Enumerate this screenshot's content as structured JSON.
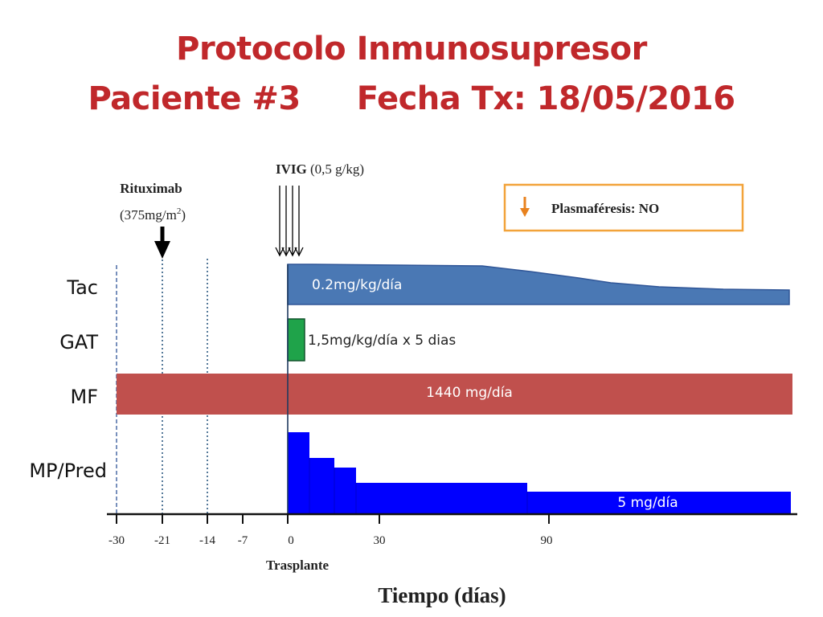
{
  "title": {
    "line1": "Protocolo Inmunosupresor",
    "patient": "Paciente #3",
    "date": "Fecha Tx: 18/05/2016"
  },
  "rows": {
    "tac": "Tac",
    "gat": "GAT",
    "mf": "MF",
    "mp": "MP/Pred"
  },
  "bars": {
    "tac": {
      "label": "0.2mg/kg/día",
      "color": "#4a78b4",
      "start_day": 0
    },
    "gat": {
      "label": "1,5mg/kg/día  x 5 dias",
      "color": "#1fa34a",
      "start_day": 0,
      "duration_days": 5
    },
    "mf": {
      "label": "1440 mg/día",
      "color": "#c0504d"
    },
    "mp": {
      "label": "5 mg/día",
      "color": "#0000ff",
      "start_day": 0
    }
  },
  "annotations": {
    "rituximab_name": "Rituximab",
    "rituximab_dose_prefix": "(375mg/m",
    "rituximab_sup": "2",
    "rituximab_dose_suffix": ")",
    "rituximab_day": -21,
    "ivig_name": "IVIG",
    "ivig_dose": " (0,5 g/kg)",
    "plasmapheresis": "Plasmaféresis: NO",
    "transplant": "Trasplante"
  },
  "axis": {
    "ticks": [
      "-30",
      "-21",
      "-14",
      "-7",
      "0",
      "30",
      "90"
    ],
    "xlabel": "Tiempo (días)"
  },
  "colors": {
    "title": "#c0282b",
    "legend_border": "#f2a33a",
    "legend_arrow": "#e8821e"
  }
}
